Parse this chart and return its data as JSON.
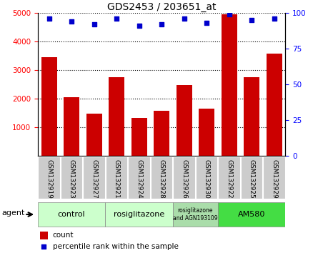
{
  "title": "GDS2453 / 203651_at",
  "samples": [
    "GSM132919",
    "GSM132923",
    "GSM132927",
    "GSM132921",
    "GSM132924",
    "GSM132928",
    "GSM132926",
    "GSM132930",
    "GSM132922",
    "GSM132925",
    "GSM132929"
  ],
  "counts": [
    3450,
    2050,
    1480,
    2750,
    1320,
    1580,
    2460,
    1650,
    4950,
    2750,
    3580
  ],
  "percentiles": [
    96,
    94,
    92,
    96,
    91,
    92,
    96,
    93,
    99,
    95,
    96
  ],
  "ylim_left": [
    0,
    5000
  ],
  "ylim_right": [
    0,
    100
  ],
  "yticks_left": [
    1000,
    2000,
    3000,
    4000,
    5000
  ],
  "yticks_right": [
    0,
    25,
    50,
    75,
    100
  ],
  "bar_color": "#cc0000",
  "dot_color": "#0000cc",
  "groups": [
    {
      "label": "control",
      "start": 0,
      "end": 3,
      "color": "#ccffcc"
    },
    {
      "label": "rosiglitazone",
      "start": 3,
      "end": 6,
      "color": "#ccffcc"
    },
    {
      "label": "rosiglitazone\nand AGN193109",
      "start": 6,
      "end": 8,
      "color": "#aaddaa"
    },
    {
      "label": "AM580",
      "start": 8,
      "end": 11,
      "color": "#44dd44"
    }
  ],
  "xtick_bg_color": "#cccccc",
  "legend_count_color": "#cc0000",
  "legend_dot_color": "#0000cc",
  "background_color": "#ffffff"
}
